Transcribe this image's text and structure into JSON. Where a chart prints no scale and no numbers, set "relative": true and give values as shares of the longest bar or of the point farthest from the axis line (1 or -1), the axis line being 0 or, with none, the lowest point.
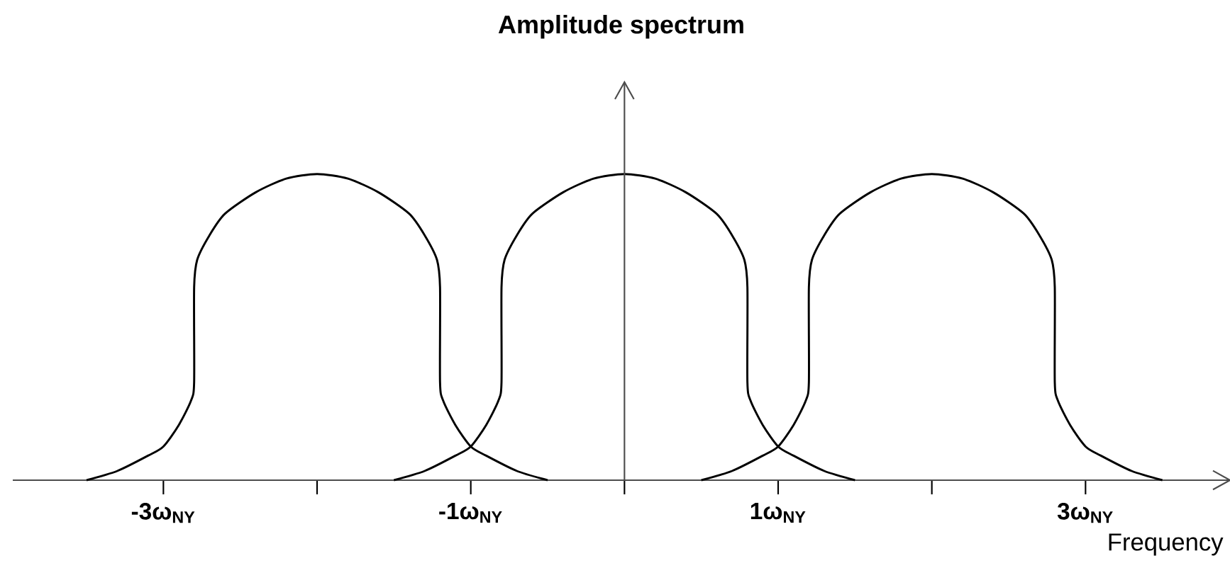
{
  "chart_data": {
    "type": "line",
    "title": "Amplitude spectrum",
    "xlabel": "Frequency",
    "relative": true,
    "xlim": [
      -3.98,
      3.94
    ],
    "xticks": [
      {
        "value": -3,
        "label": "-3ω$_{NY}$"
      },
      {
        "value": -2,
        "label": null
      },
      {
        "value": -1,
        "label": "-1ω$_{NY}$"
      },
      {
        "value": 0,
        "label": null
      },
      {
        "value": 1,
        "label": "1ω$_{NY}$"
      },
      {
        "value": 2,
        "label": null
      },
      {
        "value": 3,
        "label": "3ω$_{NY}$"
      }
    ],
    "series": [
      {
        "color": "#000000",
        "x": [
          -3.5,
          -3.3,
          -3.1,
          -3.0,
          -2.9,
          -2.82,
          -2.8,
          -2.8,
          -2.78,
          -2.7,
          -2.6,
          -2.4,
          -2.2,
          -2,
          -1.8,
          -1.6,
          -1.4,
          -1.3,
          -1.22,
          -1.2,
          -1.2,
          -1.18,
          -1.1,
          -1.0,
          -0.9,
          -0.7,
          -0.5
        ],
        "values": [
          0,
          0.03,
          0.08,
          0.11,
          0.18,
          0.26,
          0.32,
          0.63,
          0.72,
          0.8,
          0.87,
          0.94,
          0.985,
          1,
          0.985,
          0.94,
          0.87,
          0.8,
          0.72,
          0.63,
          0.32,
          0.26,
          0.18,
          0.11,
          0.08,
          0.03,
          0
        ]
      },
      {
        "color": "#000000",
        "x": [
          -1.5,
          -1.3,
          -1.1,
          -1.0,
          -0.9,
          -0.82,
          -0.8,
          -0.8,
          -0.78,
          -0.7,
          -0.6,
          -0.4,
          -0.2,
          0,
          0.2,
          0.4,
          0.6,
          0.7,
          0.78,
          0.8,
          0.8,
          0.82,
          0.9,
          1.0,
          1.1,
          1.3,
          1.5
        ],
        "values": [
          0,
          0.03,
          0.08,
          0.11,
          0.18,
          0.26,
          0.32,
          0.63,
          0.72,
          0.8,
          0.87,
          0.94,
          0.985,
          1,
          0.985,
          0.94,
          0.87,
          0.8,
          0.72,
          0.63,
          0.32,
          0.26,
          0.18,
          0.11,
          0.08,
          0.03,
          0
        ]
      },
      {
        "color": "#000000",
        "x": [
          0.5,
          0.7,
          0.9,
          1.0,
          1.1,
          1.18,
          1.2,
          1.2,
          1.22,
          1.3,
          1.4,
          1.6,
          1.8,
          2,
          2.2,
          2.4,
          2.6,
          2.7,
          2.78,
          2.8,
          2.8,
          2.82,
          2.9,
          3.0,
          3.1,
          3.3,
          3.5
        ],
        "values": [
          0,
          0.03,
          0.08,
          0.11,
          0.18,
          0.26,
          0.32,
          0.63,
          0.72,
          0.8,
          0.87,
          0.94,
          0.985,
          1,
          0.985,
          0.94,
          0.87,
          0.8,
          0.72,
          0.63,
          0.32,
          0.26,
          0.18,
          0.11,
          0.08,
          0.03,
          0
        ]
      }
    ]
  }
}
